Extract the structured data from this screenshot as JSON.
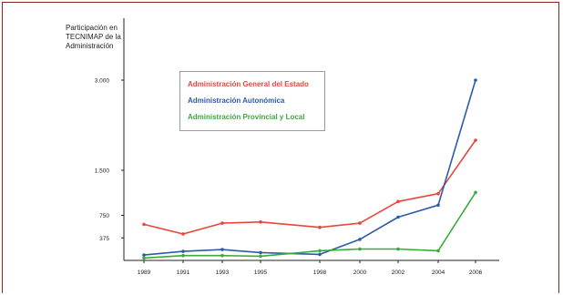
{
  "chart_data": {
    "type": "line",
    "ylabel": "Participación en TECNIMAP de la Administración",
    "x": [
      "1989",
      "1991",
      "1993",
      "1995",
      "1998",
      "2000",
      "2002",
      "2004",
      "2006"
    ],
    "y_ticks": [
      {
        "value": 375,
        "label": "375"
      },
      {
        "value": 750,
        "label": "750"
      },
      {
        "value": 1500,
        "label": "1.500"
      },
      {
        "value": 3000,
        "label": "3.000"
      }
    ],
    "ylim": [
      0,
      3300
    ],
    "grid": false,
    "legend_position": "top-left",
    "series": [
      {
        "name": "Administración General del Estado",
        "color": "#e8463c",
        "values": [
          600,
          440,
          620,
          640,
          550,
          620,
          980,
          1110,
          2000
        ]
      },
      {
        "name": "Administración Autonómica",
        "color": "#2e5aa8",
        "values": [
          90,
          150,
          180,
          130,
          100,
          350,
          720,
          920,
          3000
        ]
      },
      {
        "name": "Administración Provincial y Local",
        "color": "#3aaa3a",
        "values": [
          40,
          80,
          80,
          70,
          160,
          190,
          190,
          160,
          1130
        ]
      }
    ]
  }
}
